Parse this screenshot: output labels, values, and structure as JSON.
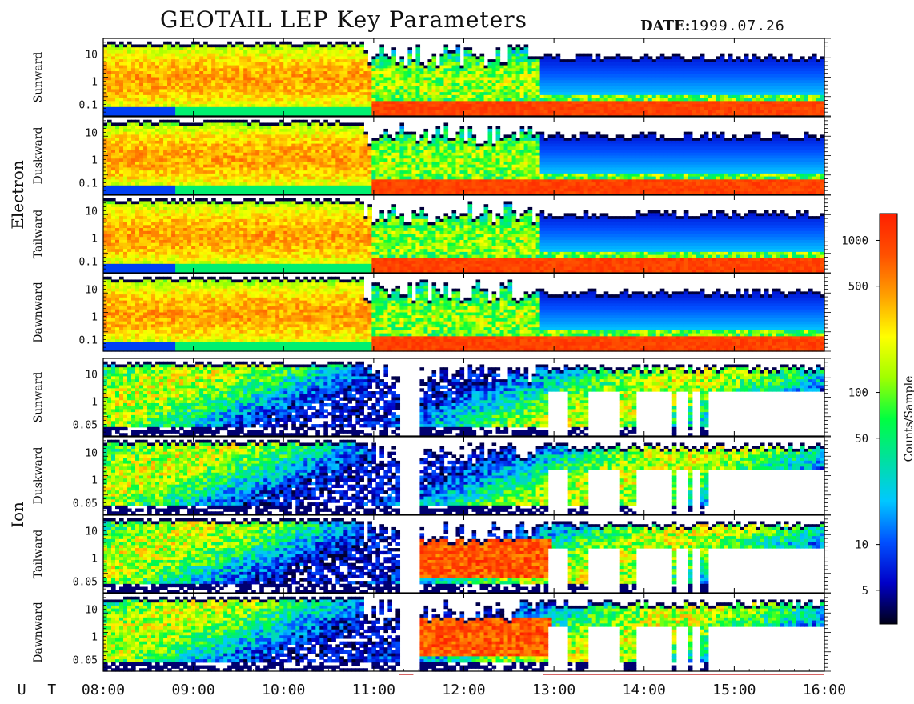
{
  "header": {
    "title": "GEOTAIL LEP Key Parameters",
    "date_label": "DATE:",
    "date_value": "1999.07.26"
  },
  "chart_data": {
    "type": "heatmap",
    "title": "GEOTAIL LEP Key Parameters",
    "date": "1999.07.26",
    "x_axis": {
      "label": "U T",
      "ticks": [
        "08:00",
        "09:00",
        "10:00",
        "11:00",
        "12:00",
        "13:00",
        "14:00",
        "15:00",
        "16:00"
      ],
      "range": [
        "08:00",
        "16:00"
      ]
    },
    "colorbar": {
      "label": "Counts/Sample",
      "scale": "log",
      "range": [
        3,
        1500
      ],
      "ticks": [
        5,
        10,
        50,
        100,
        500,
        1000
      ],
      "tick_labels": [
        "5",
        "10",
        "50",
        "100",
        "500",
        "1000"
      ],
      "colormap": [
        "#000018",
        "#0000c8",
        "#0050ff",
        "#00c8ff",
        "#00e0a0",
        "#00ff40",
        "#a0ff00",
        "#ffff00",
        "#ffa000",
        "#ff5000",
        "#ff2000"
      ]
    },
    "groups": [
      {
        "name": "Electron",
        "y_ticks": [
          "10",
          "1",
          "0.1"
        ],
        "panels": [
          "Sunward",
          "Duskward",
          "Tailward",
          "Dawnward"
        ]
      },
      {
        "name": "Ion",
        "y_ticks": [
          "10",
          "1",
          "0.05"
        ],
        "panels": [
          "Sunward",
          "Duskward",
          "Tailward",
          "Dawnward"
        ]
      }
    ]
  }
}
